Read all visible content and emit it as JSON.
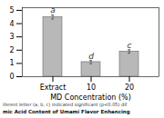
{
  "chart_data": {
    "type": "bar",
    "categories": [
      "Extract",
      "10",
      "20"
    ],
    "values": [
      4.5,
      1.1,
      1.9
    ],
    "errors": [
      0.15,
      0.12,
      0.13
    ],
    "letters": [
      "a",
      "d",
      "c"
    ],
    "color": "#b8b8b8",
    "xlabel": "MD Concentration (%)",
    "ylim": [
      0,
      5.2
    ],
    "yticks": [
      0,
      1,
      2,
      3,
      4,
      5
    ],
    "footnote": "iferent letter (a, b, c) indicated significant (p<0.05) dif",
    "caption": "mic Acid Content of Umami Flavor Enhancing"
  }
}
